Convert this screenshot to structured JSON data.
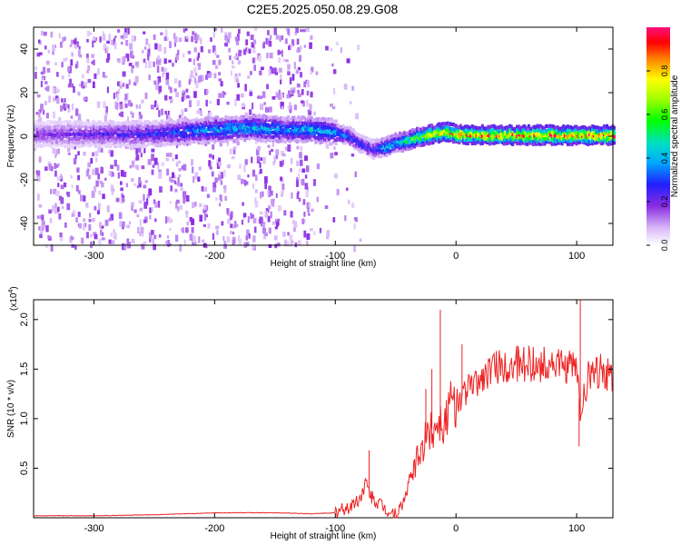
{
  "title": "C2E5.2025.050.08.29.G08",
  "chart_data": [
    {
      "type": "heatmap",
      "xlabel": "Height of straight line (km)",
      "ylabel": "Frequency (Hz)",
      "xlim": [
        -350,
        130
      ],
      "ylim": [
        -50,
        50
      ],
      "xticks": [
        -300,
        -200,
        -100,
        0,
        100
      ],
      "yticks": [
        -40,
        -20,
        0,
        20,
        40
      ],
      "xtick_labels": [
        "-300",
        "-200",
        "-100",
        "0",
        "100"
      ],
      "ytick_labels": [
        "-40",
        "-20",
        "0",
        "20",
        "40"
      ],
      "colorbar": {
        "label": "Normalized spectral amplitude",
        "range": [
          0,
          1
        ],
        "ticks": [
          "0.0",
          "0.2",
          "0.4",
          "0.6",
          "0.8"
        ],
        "tick_values": [
          0.0,
          0.2,
          0.4,
          0.6,
          0.8
        ]
      },
      "signal_track": {
        "x": [
          -350,
          -320,
          -290,
          -260,
          -230,
          -200,
          -170,
          -140,
          -120,
          -100,
          -90,
          -80,
          -70,
          -60,
          -50,
          -40,
          -30,
          -20,
          -10,
          0,
          20,
          40,
          60,
          80,
          100,
          130
        ],
        "y": [
          1,
          1,
          1,
          1,
          2,
          3,
          4,
          3,
          3,
          2,
          0,
          -3,
          -6,
          -5,
          -3,
          -2,
          0,
          1,
          2,
          1,
          0.5,
          0.5,
          0.5,
          0.5,
          0.5,
          0.5
        ],
        "amplitude": [
          0.2,
          0.22,
          0.25,
          0.28,
          0.35,
          0.42,
          0.45,
          0.4,
          0.45,
          0.4,
          0.35,
          0.3,
          0.28,
          0.45,
          0.5,
          0.6,
          0.75,
          0.85,
          0.9,
          0.9,
          0.92,
          0.92,
          0.92,
          0.92,
          0.92,
          0.95
        ]
      },
      "grid": false
    },
    {
      "type": "line",
      "xlabel": "Height of straight line (km)",
      "ylabel": "SNR (10 * v/v)",
      "y_multiplier": "(x10",
      "y_exponent": "4",
      "y_multiplier_close": ")",
      "xlim": [
        -350,
        130
      ],
      "ylim": [
        0,
        2.2
      ],
      "xticks": [
        -300,
        -200,
        -100,
        0,
        100
      ],
      "yticks": [
        0.5,
        1.0,
        1.5,
        2.0
      ],
      "xtick_labels": [
        "-300",
        "-200",
        "-100",
        "0",
        "100"
      ],
      "ytick_labels": [
        "0.5",
        "1.0",
        "1.5",
        "2.0"
      ],
      "series": [
        {
          "color": "#ee2222",
          "x": [
            -350,
            -300,
            -250,
            -200,
            -150,
            -120,
            -100,
            -90,
            -80,
            -75,
            -70,
            -60,
            -55,
            -50,
            -45,
            -40,
            -35,
            -30,
            -25,
            -20,
            -15,
            -10,
            -5,
            0,
            10,
            20,
            30,
            40,
            50,
            60,
            70,
            80,
            90,
            100,
            103,
            110,
            120,
            130
          ],
          "y": [
            0.02,
            0.02,
            0.03,
            0.05,
            0.05,
            0.04,
            0.05,
            0.1,
            0.18,
            0.35,
            0.2,
            0.1,
            0.05,
            0.03,
            0.1,
            0.3,
            0.5,
            0.65,
            0.8,
            0.9,
            1.0,
            0.95,
            1.1,
            1.15,
            1.3,
            1.4,
            1.5,
            1.52,
            1.55,
            1.55,
            1.55,
            1.55,
            1.5,
            1.52,
            1.05,
            1.45,
            1.48,
            1.43
          ]
        }
      ],
      "spikes": [
        {
          "x": -72,
          "y": 0.68
        },
        {
          "x": -13,
          "y": 2.1
        },
        {
          "x": 103,
          "y": 2.22
        },
        {
          "x": 102,
          "y": 0.72
        },
        {
          "x": -25,
          "y": 1.3
        },
        {
          "x": -20,
          "y": 1.5
        },
        {
          "x": 5,
          "y": 1.75
        }
      ],
      "grid": false
    }
  ]
}
